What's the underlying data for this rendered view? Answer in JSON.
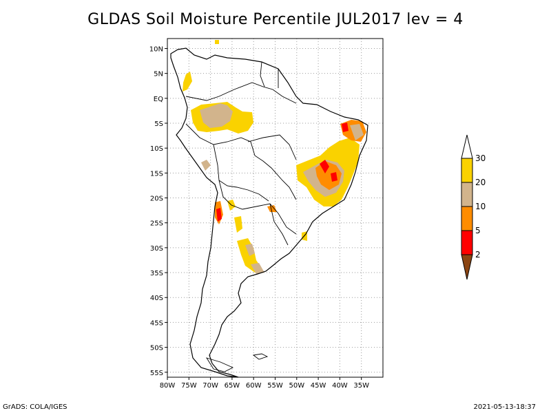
{
  "title": "GLDAS Soil Moisture Percentile JUL2017 lev = 4",
  "footer": {
    "left": "GrADS: COLA/IGES",
    "right": "2021-05-13-18:37"
  },
  "map": {
    "lon_range": [
      -80,
      -30
    ],
    "lat_range": [
      -56,
      12
    ],
    "lat_ticks": [
      "10N",
      "5N",
      "EQ",
      "5S",
      "10S",
      "15S",
      "20S",
      "25S",
      "30S",
      "35S",
      "40S",
      "45S",
      "50S",
      "55S"
    ],
    "lat_values": [
      10,
      5,
      0,
      -5,
      -10,
      -15,
      -20,
      -25,
      -30,
      -35,
      -40,
      -45,
      -50,
      -55
    ],
    "lon_ticks": [
      "80W",
      "75W",
      "70W",
      "65W",
      "60W",
      "55W",
      "50W",
      "45W",
      "40W",
      "35W"
    ],
    "lon_values": [
      -80,
      -75,
      -70,
      -65,
      -60,
      -55,
      -50,
      -45,
      -40,
      -35
    ],
    "grid": true,
    "grid_style": "dotted"
  },
  "colorbar": {
    "labels": [
      "30",
      "20",
      "10",
      "5",
      "2"
    ],
    "colors": {
      "above_30": "#ffffff",
      "20_30": "#fad200",
      "10_20": "#d2b48c",
      "5_10": "#ff8c00",
      "2_5": "#ff0000",
      "below_2": "#8b4513"
    }
  }
}
